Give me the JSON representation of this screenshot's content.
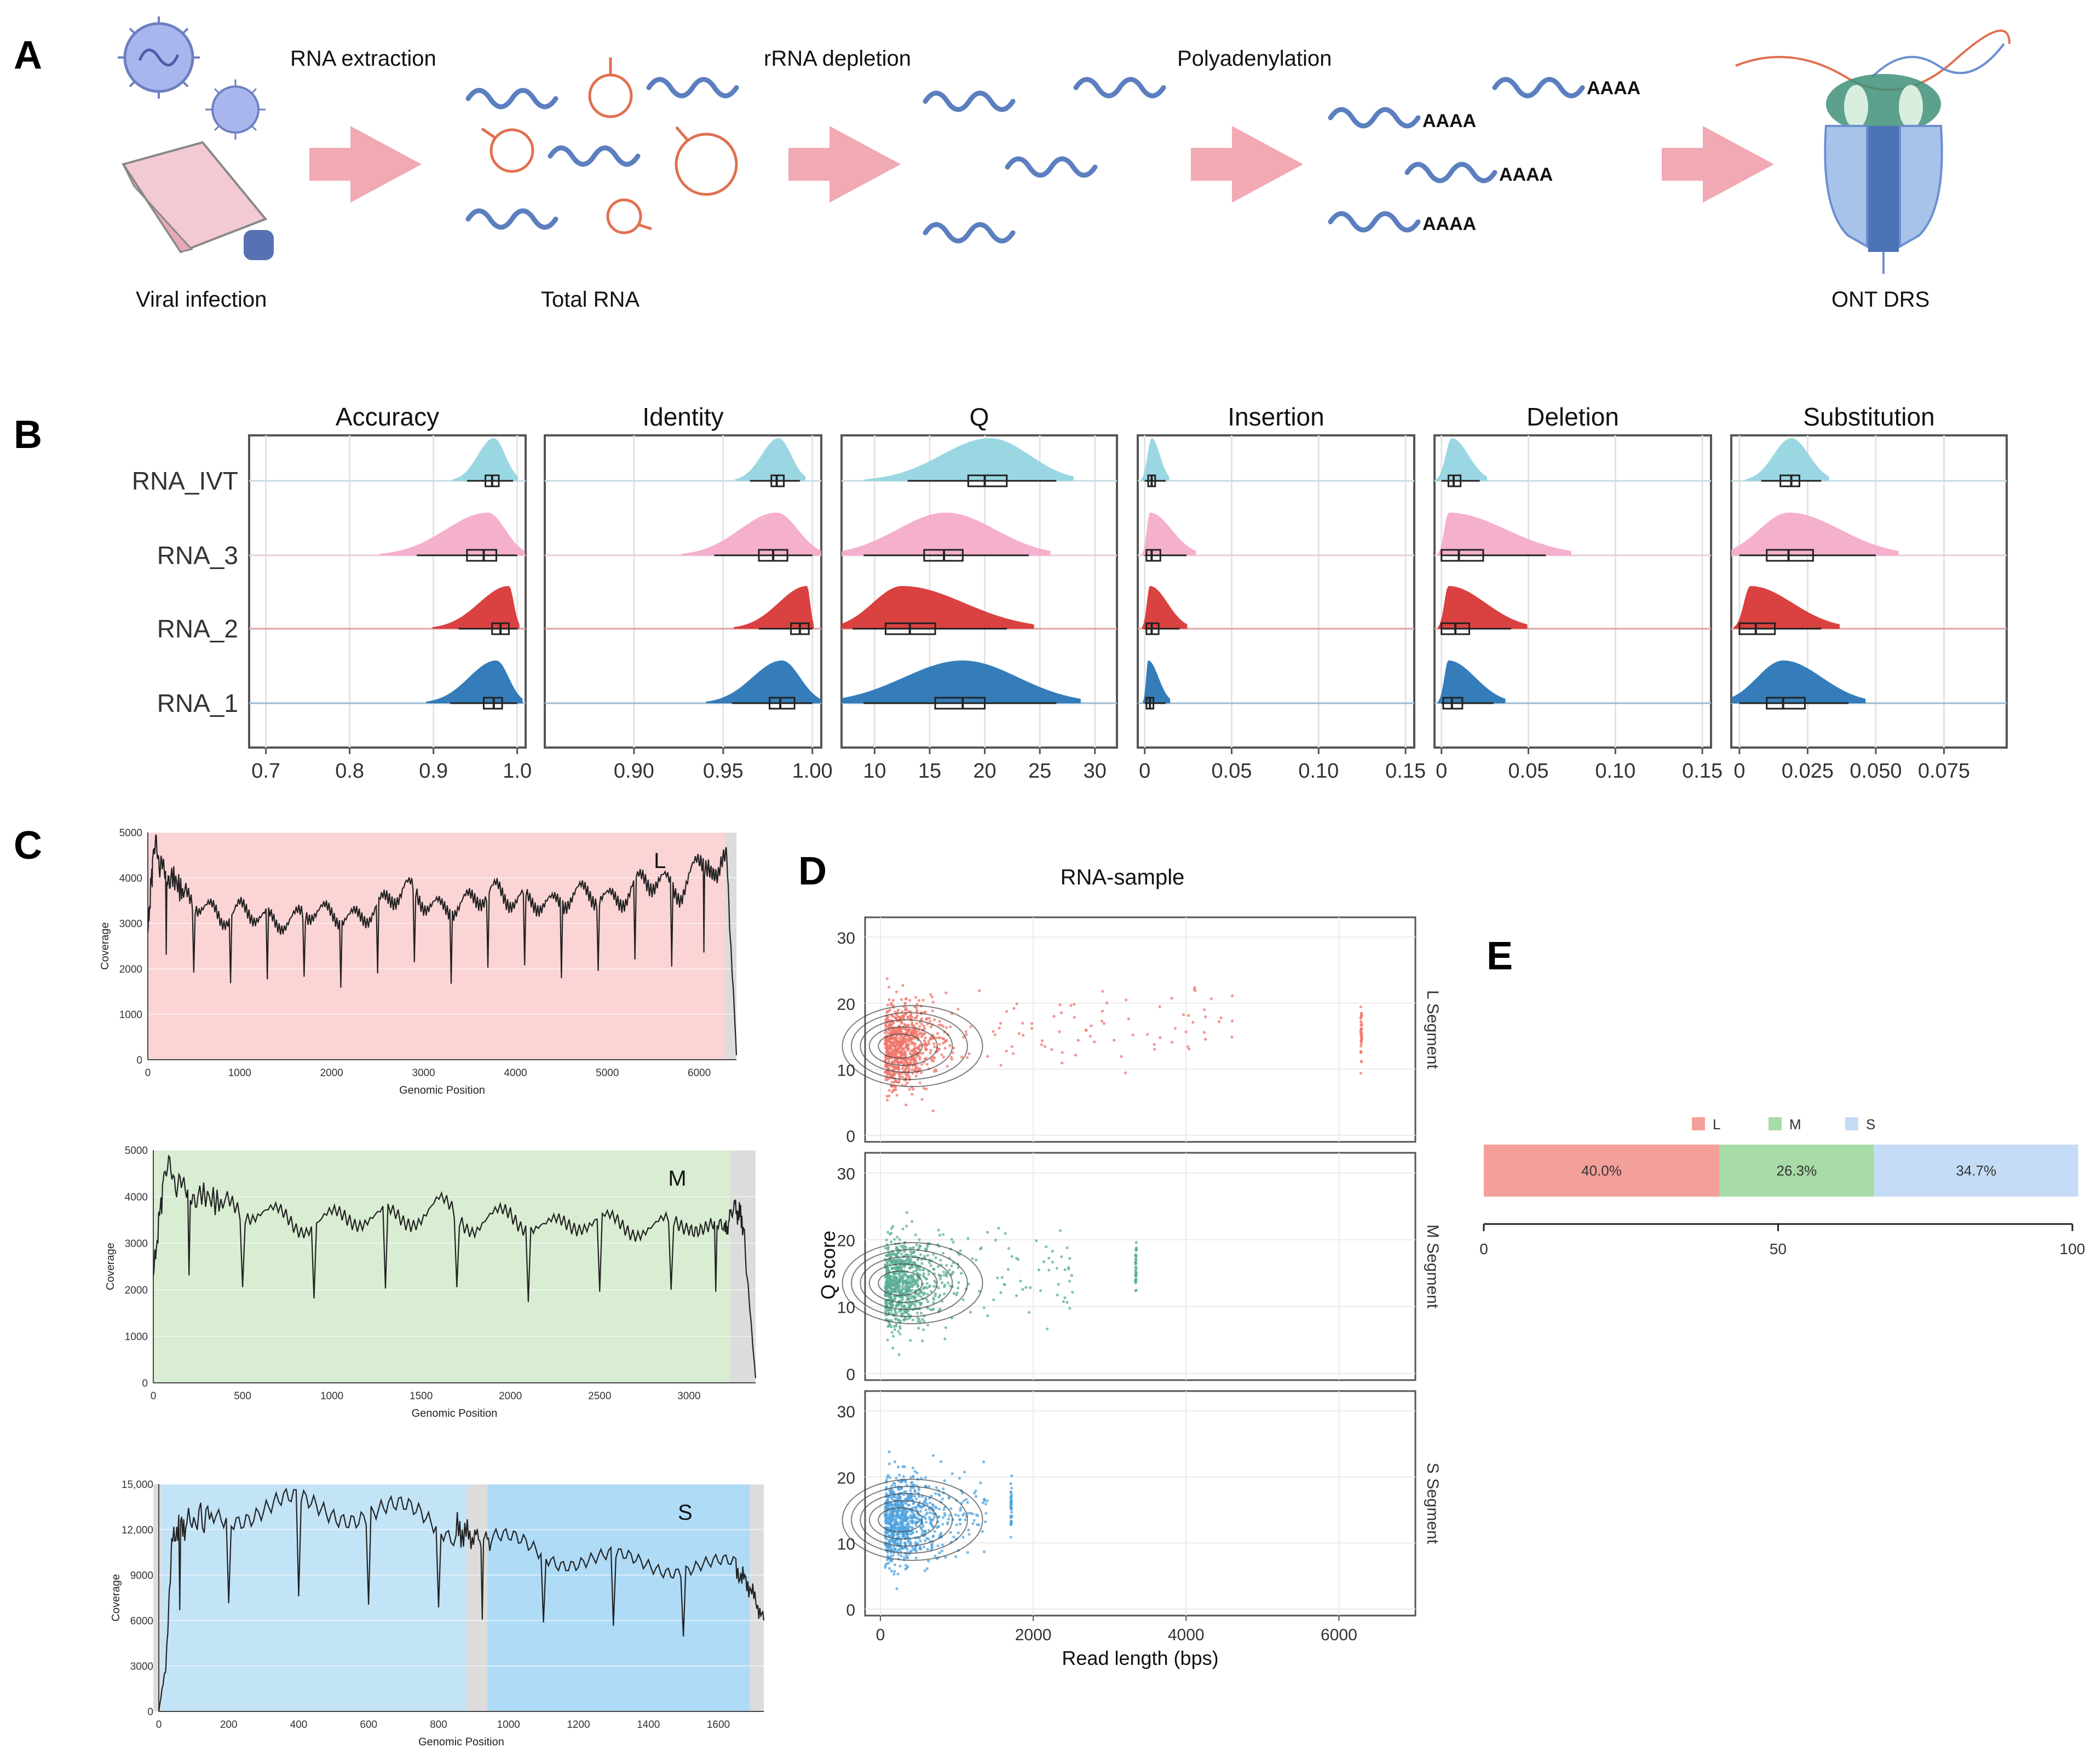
{
  "panel_labels": [
    "A",
    "B",
    "C",
    "D",
    "E"
  ],
  "workflow": {
    "steps": [
      {
        "label": "Viral infection"
      },
      {
        "label": "RNA extraction"
      },
      {
        "label": "Total RNA"
      },
      {
        "label": "rRNA depletion"
      },
      {
        "label": "Polyadenylation"
      },
      {
        "label": "ONT DRS"
      }
    ],
    "polya_tag": "AAAA",
    "colors": {
      "rna": "#5b7fbf",
      "rrna": "#e07050",
      "arrow": "#e9a0a8",
      "virus": "#9aaae8"
    }
  },
  "chart_data": [
    {
      "id": "B",
      "type": "violin-box",
      "rows": [
        "RNA_IVT",
        "RNA_3",
        "RNA_2",
        "RNA_1"
      ],
      "row_colors": {
        "RNA_IVT": "#8fd3e0",
        "RNA_3": "#f4a7c8",
        "RNA_2": "#d62c2c",
        "RNA_1": "#1f6fb2"
      },
      "panels": [
        {
          "title": "Accuracy",
          "xlim": [
            0.68,
            1.01
          ],
          "ticks": [
            0.7,
            0.8,
            0.9,
            1.0
          ],
          "tick_labels": [
            "0.7",
            "0.8",
            "0.9",
            "1.0"
          ],
          "stats": {
            "RNA_IVT": {
              "q1": 0.962,
              "med": 0.97,
              "q3": 0.978,
              "wlo": 0.94,
              "whi": 0.995,
              "mode": 0.972
            },
            "RNA_3": {
              "q1": 0.94,
              "med": 0.96,
              "q3": 0.975,
              "wlo": 0.88,
              "whi": 1.0,
              "mode": 0.965
            },
            "RNA_2": {
              "q1": 0.97,
              "med": 0.98,
              "q3": 0.99,
              "wlo": 0.93,
              "whi": 1.0,
              "mode": 0.99
            },
            "RNA_1": {
              "q1": 0.96,
              "med": 0.972,
              "q3": 0.982,
              "wlo": 0.92,
              "whi": 1.0,
              "mode": 0.975
            }
          }
        },
        {
          "title": "Identity",
          "xlim": [
            0.85,
            1.005
          ],
          "ticks": [
            0.9,
            0.95,
            1.0
          ],
          "tick_labels": [
            "0.90",
            "0.95",
            "1.00"
          ],
          "stats": {
            "RNA_IVT": {
              "q1": 0.977,
              "med": 0.98,
              "q3": 0.984,
              "wlo": 0.965,
              "whi": 0.993,
              "mode": 0.981
            },
            "RNA_3": {
              "q1": 0.97,
              "med": 0.978,
              "q3": 0.986,
              "wlo": 0.945,
              "whi": 1.0,
              "mode": 0.98
            },
            "RNA_2": {
              "q1": 0.988,
              "med": 0.993,
              "q3": 0.998,
              "wlo": 0.97,
              "whi": 1.0,
              "mode": 0.997
            },
            "RNA_1": {
              "q1": 0.976,
              "med": 0.982,
              "q3": 0.99,
              "wlo": 0.955,
              "whi": 1.0,
              "mode": 0.983
            }
          }
        },
        {
          "title": "Q",
          "xlim": [
            7,
            32
          ],
          "ticks": [
            10,
            15,
            20,
            25,
            30
          ],
          "tick_labels": [
            "10",
            "15",
            "20",
            "25",
            "30"
          ],
          "stats": {
            "RNA_IVT": {
              "q1": 18.5,
              "med": 20.0,
              "q3": 22.0,
              "wlo": 13,
              "whi": 26.5,
              "mode": 20.5
            },
            "RNA_3": {
              "q1": 14.5,
              "med": 16.3,
              "q3": 18.0,
              "wlo": 9,
              "whi": 24,
              "mode": 16.5
            },
            "RNA_2": {
              "q1": 11,
              "med": 13.2,
              "q3": 15.5,
              "wlo": 8,
              "whi": 22,
              "mode": 12.5
            },
            "RNA_1": {
              "q1": 15.5,
              "med": 18.0,
              "q3": 20.0,
              "wlo": 9,
              "whi": 26.5,
              "mode": 18
            }
          }
        },
        {
          "title": "Insertion",
          "xlim": [
            -0.004,
            0.155
          ],
          "ticks": [
            0,
            0.05,
            0.1,
            0.15
          ],
          "tick_labels": [
            "0",
            "0.05",
            "0.10",
            "0.15"
          ],
          "stats": {
            "RNA_IVT": {
              "q1": 0.002,
              "med": 0.004,
              "q3": 0.006,
              "wlo": 0,
              "whi": 0.012,
              "mode": 0.004
            },
            "RNA_3": {
              "q1": 0.001,
              "med": 0.004,
              "q3": 0.009,
              "wlo": 0,
              "whi": 0.024,
              "mode": 0.003
            },
            "RNA_2": {
              "q1": 0.001,
              "med": 0.004,
              "q3": 0.008,
              "wlo": 0,
              "whi": 0.02,
              "mode": 0.003
            },
            "RNA_1": {
              "q1": 0.001,
              "med": 0.003,
              "q3": 0.005,
              "wlo": 0,
              "whi": 0.012,
              "mode": 0.002
            }
          }
        },
        {
          "title": "Deletion",
          "xlim": [
            -0.004,
            0.155
          ],
          "ticks": [
            0,
            0.05,
            0.1,
            0.15
          ],
          "tick_labels": [
            "0",
            "0.05",
            "0.10",
            "0.15"
          ],
          "stats": {
            "RNA_IVT": {
              "q1": 0.004,
              "med": 0.007,
              "q3": 0.011,
              "wlo": 0,
              "whi": 0.022,
              "mode": 0.006
            },
            "RNA_3": {
              "q1": 0.0,
              "med": 0.01,
              "q3": 0.024,
              "wlo": 0,
              "whi": 0.06,
              "mode": 0.004
            },
            "RNA_2": {
              "q1": 0.0,
              "med": 0.008,
              "q3": 0.016,
              "wlo": 0,
              "whi": 0.04,
              "mode": 0.004
            },
            "RNA_1": {
              "q1": 0.001,
              "med": 0.006,
              "q3": 0.012,
              "wlo": 0,
              "whi": 0.03,
              "mode": 0.004
            }
          }
        },
        {
          "title": "Substitution",
          "xlim": [
            -0.003,
            0.098
          ],
          "ticks": [
            0,
            0.025,
            0.05,
            0.075
          ],
          "tick_labels": [
            "0",
            "0.025",
            "0.050",
            "0.075"
          ],
          "stats": {
            "RNA_IVT": {
              "q1": 0.015,
              "med": 0.019,
              "q3": 0.022,
              "wlo": 0.008,
              "whi": 0.03,
              "mode": 0.019
            },
            "RNA_3": {
              "q1": 0.01,
              "med": 0.018,
              "q3": 0.027,
              "wlo": 0,
              "whi": 0.05,
              "mode": 0.018
            },
            "RNA_2": {
              "q1": 0.0,
              "med": 0.006,
              "q3": 0.013,
              "wlo": 0,
              "whi": 0.03,
              "mode": 0.004
            },
            "RNA_1": {
              "q1": 0.01,
              "med": 0.016,
              "q3": 0.024,
              "wlo": 0,
              "whi": 0.04,
              "mode": 0.016
            }
          }
        }
      ]
    },
    {
      "id": "C",
      "type": "line",
      "ylabel": "Coverage",
      "xlabel": "Genomic Position",
      "panels": [
        {
          "segment": "L",
          "fill": "#fbd4d6",
          "xlim": [
            0,
            6404
          ],
          "ylim": [
            0,
            5000
          ],
          "xticks": [
            0,
            1000,
            2000,
            3000,
            4000,
            5000,
            6000
          ],
          "yticks": [
            0,
            1000,
            2000,
            3000,
            4000,
            5000
          ],
          "ytick_labels": [
            "0",
            "1000",
            "2000",
            "3000",
            "4000",
            "5000"
          ],
          "x": [
            0,
            60,
            150,
            250,
            400,
            600,
            800,
            1000,
            1200,
            1400,
            1600,
            1800,
            2000,
            2200,
            2400,
            2600,
            2800,
            3000,
            3200,
            3400,
            3600,
            3800,
            4000,
            4200,
            4400,
            4600,
            4800,
            5000,
            5200,
            5400,
            5600,
            5800,
            6000,
            6100,
            6200,
            6300,
            6404
          ],
          "y": [
            2800,
            4600,
            4400,
            4100,
            3600,
            3400,
            3100,
            3300,
            3200,
            3000,
            3100,
            3300,
            3200,
            3100,
            3200,
            3500,
            3800,
            3500,
            3300,
            3400,
            3600,
            3700,
            3500,
            3500,
            3400,
            3600,
            3700,
            3500,
            3600,
            4000,
            3900,
            3700,
            4300,
            4500,
            3900,
            4400,
            100
          ]
        },
        {
          "segment": "M",
          "fill": "#d9edd2",
          "xlim": [
            0,
            3373
          ],
          "ylim": [
            0,
            5000
          ],
          "xticks": [
            0,
            500,
            1000,
            1500,
            2000,
            2500,
            3000
          ],
          "yticks": [
            0,
            1000,
            2000,
            3000,
            4000,
            5000
          ],
          "ytick_labels": [
            "0",
            "1000",
            "2000",
            "3000",
            "4000",
            "5000"
          ],
          "x": [
            0,
            60,
            150,
            250,
            400,
            600,
            800,
            1000,
            1200,
            1400,
            1600,
            1800,
            2000,
            2200,
            2400,
            2600,
            2800,
            3000,
            3100,
            3200,
            3250,
            3300,
            3373
          ],
          "y": [
            2300,
            4500,
            4400,
            4100,
            3800,
            3700,
            3400,
            3500,
            3600,
            3500,
            3800,
            3400,
            3600,
            3300,
            3500,
            3400,
            3300,
            3500,
            3300,
            3200,
            3800,
            3500,
            100
          ]
        },
        {
          "segment": "S",
          "fill": "#c3e3f7",
          "xlim": [
            0,
            1730
          ],
          "ylim": [
            0,
            15000
          ],
          "xticks": [
            0,
            200,
            400,
            600,
            800,
            1000,
            1200,
            1400,
            1600
          ],
          "yticks": [
            0,
            3000,
            6000,
            9000,
            12000,
            15000
          ],
          "ytick_labels": [
            "0",
            "3000",
            "6000",
            "9000",
            "12,000",
            "15,000"
          ],
          "x": [
            0,
            20,
            40,
            80,
            150,
            250,
            350,
            450,
            550,
            650,
            750,
            850,
            900,
            950,
            1050,
            1150,
            1250,
            1350,
            1450,
            1550,
            1650,
            1690,
            1730
          ],
          "y": [
            0,
            3000,
            11800,
            12400,
            13000,
            13300,
            13500,
            13400,
            13300,
            13100,
            12800,
            12000,
            11500,
            11200,
            10800,
            10200,
            10000,
            9800,
            9700,
            9600,
            9400,
            8200,
            6000
          ]
        }
      ]
    },
    {
      "id": "D",
      "type": "scatter",
      "title": "RNA-sample",
      "xlabel": "Read length (bps)",
      "ylabel": "Q score",
      "xlim": [
        -200,
        7000
      ],
      "ylim": [
        -1,
        33
      ],
      "xticks": [
        0,
        2000,
        4000,
        6000
      ],
      "yticks": [
        0,
        10,
        20,
        30
      ],
      "facets": [
        {
          "label": "L Segment",
          "color": "#f07468",
          "xmax": 6300
        },
        {
          "label": "M Segment",
          "color": "#5aae96",
          "xmax": 3350
        },
        {
          "label": "S Segment",
          "color": "#4ea3de",
          "xmax": 1720
        }
      ]
    },
    {
      "id": "E",
      "type": "bar",
      "stacked": true,
      "orientation": "horizontal",
      "categories": [
        "L",
        "M",
        "S"
      ],
      "values": [
        40.0,
        26.3,
        34.7
      ],
      "value_labels": [
        "40.0%",
        "26.3%",
        "34.7%"
      ],
      "colors": [
        "#f4a09a",
        "#a7dba7",
        "#c5dcf6"
      ],
      "xlim": [
        0,
        100
      ],
      "xticks": [
        0,
        50,
        100
      ],
      "legend": "top"
    }
  ]
}
